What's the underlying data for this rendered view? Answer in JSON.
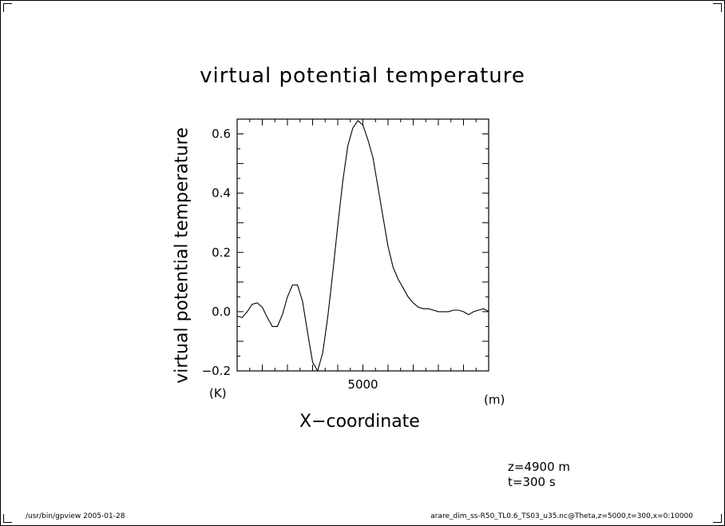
{
  "footer": {
    "left": "/usr/bin/gpview  2005-01-28",
    "right": "arare_dim_ss-R50_TL0.6_TS03_u35.nc@Theta,z=5000,t=300,x=0:10000"
  },
  "info": {
    "z": "z=4900  m",
    "t": "t=300  s"
  },
  "chart_data": {
    "type": "line",
    "title": "virtual  potential  temperature",
    "ylabel": "virtual  potential  temperature",
    "xlabel": "X−coordinate",
    "xunit": "(m)",
    "yunit": "(K)",
    "xlim": [
      0,
      10000
    ],
    "ylim": [
      -0.2,
      0.65
    ],
    "xticks": [
      5000
    ],
    "xtick_labels": [
      "5000"
    ],
    "yticks": [
      -0.2,
      0.0,
      0.2,
      0.4,
      0.6
    ],
    "ytick_labels": [
      "−0.2",
      "0.0",
      "0.2",
      "0.4",
      "0.6"
    ],
    "grid": false,
    "series": [
      {
        "x": [
          0,
          200,
          400,
          600,
          800,
          1000,
          1200,
          1400,
          1600,
          1800,
          2000,
          2200,
          2400,
          2600,
          2800,
          3000,
          3200,
          3400,
          3600,
          3800,
          4000,
          4200,
          4400,
          4600,
          4800,
          5000,
          5200,
          5400,
          5600,
          5800,
          6000,
          6200,
          6400,
          6600,
          6800,
          7000,
          7200,
          7400,
          7600,
          7800,
          8000,
          8200,
          8400,
          8600,
          8800,
          9000,
          9200,
          9400,
          9600,
          9800,
          10000
        ],
        "y": [
          -0.015,
          -0.02,
          0.0,
          0.025,
          0.03,
          0.015,
          -0.02,
          -0.05,
          -0.05,
          -0.01,
          0.05,
          0.09,
          0.09,
          0.035,
          -0.07,
          -0.17,
          -0.2,
          -0.14,
          -0.02,
          0.13,
          0.29,
          0.44,
          0.56,
          0.62,
          0.645,
          0.63,
          0.58,
          0.52,
          0.42,
          0.32,
          0.22,
          0.15,
          0.11,
          0.08,
          0.05,
          0.03,
          0.015,
          0.01,
          0.01,
          0.005,
          0.0,
          0.0,
          0.0,
          0.005,
          0.005,
          0.0,
          -0.01,
          0.0,
          0.005,
          0.01,
          0.0
        ]
      }
    ]
  }
}
